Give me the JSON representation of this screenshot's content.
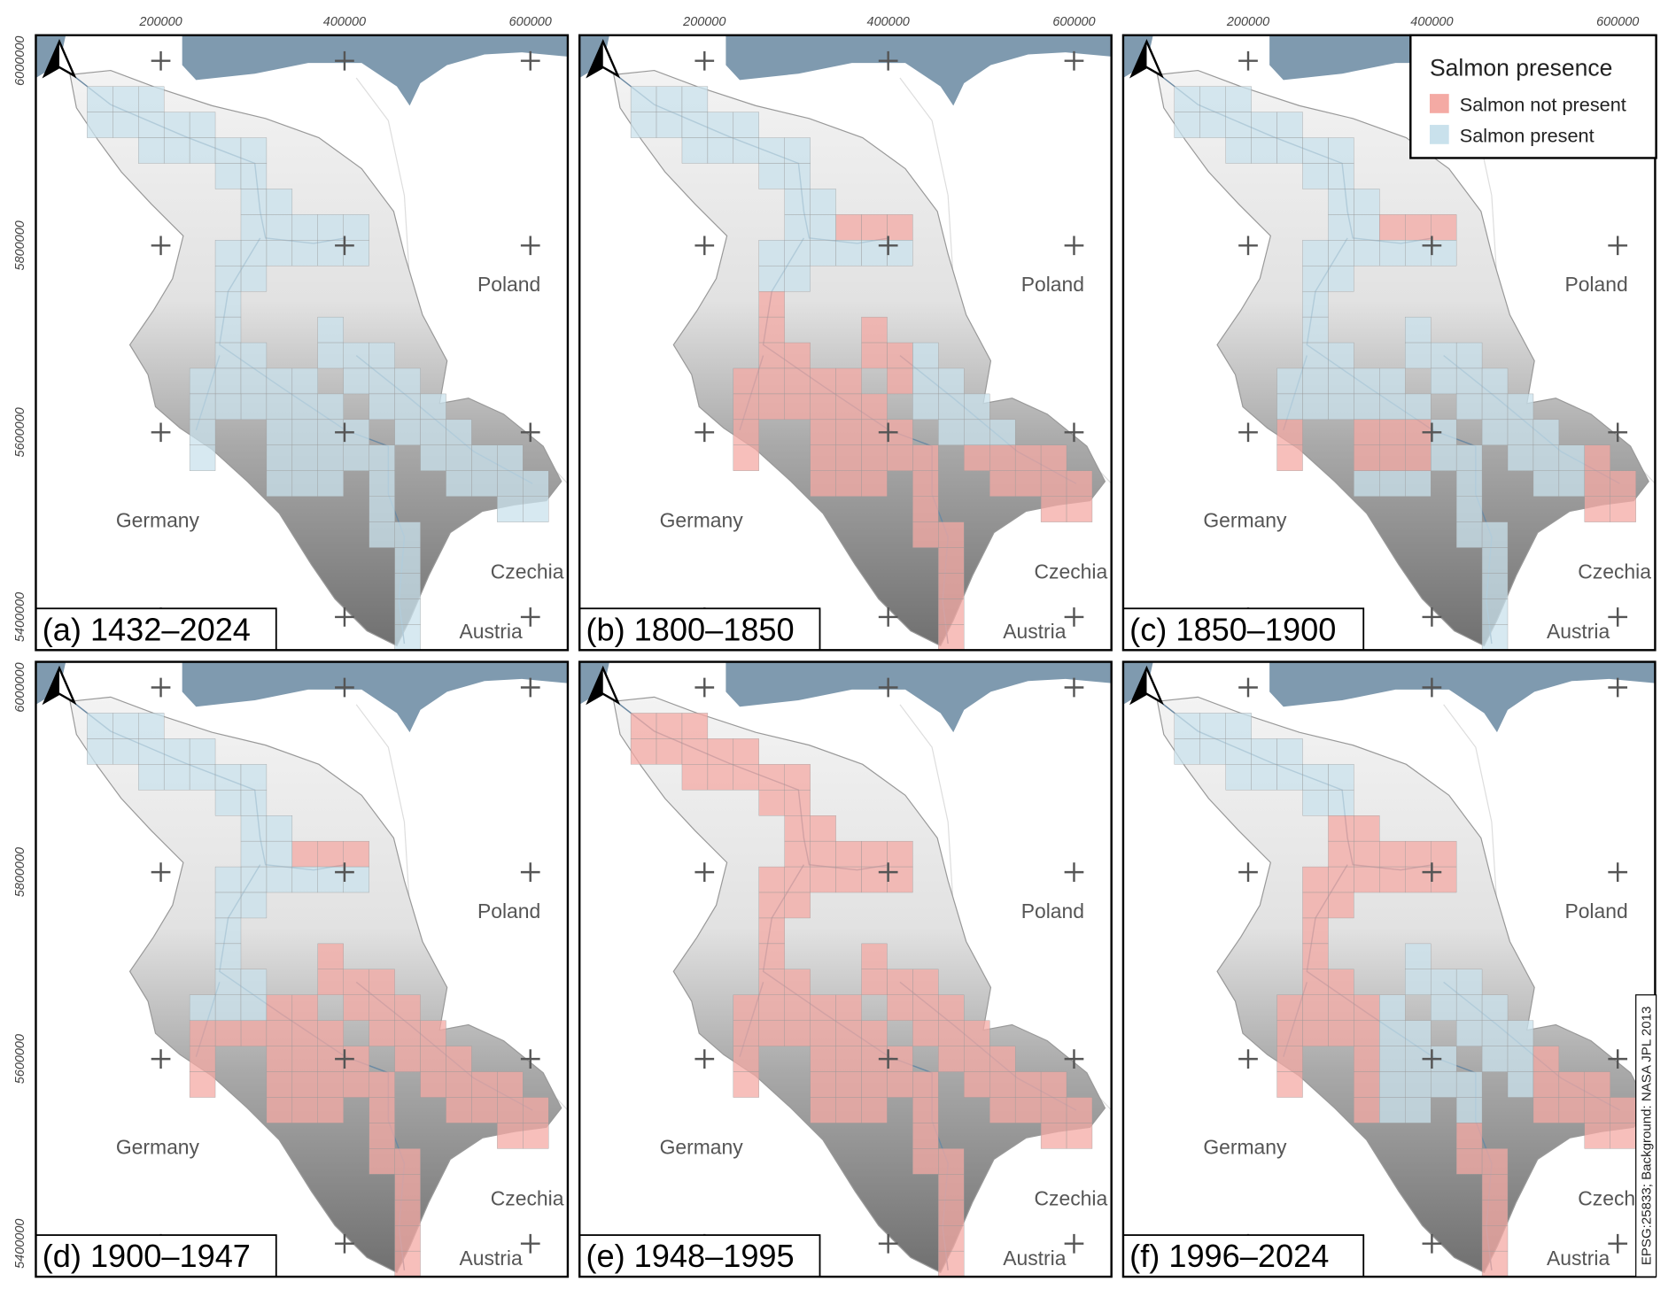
{
  "axes": {
    "x_ticks": [
      200000,
      400000,
      600000
    ],
    "y_ticks": [
      6000000,
      5800000,
      5600000,
      5400000
    ]
  },
  "panels": [
    {
      "label": "(a) 1432–2024"
    },
    {
      "label": "(b) 1800–1850"
    },
    {
      "label": "(c) 1850–1900"
    },
    {
      "label": "(d) 1900–1947"
    },
    {
      "label": "(e) 1948–1995"
    },
    {
      "label": "(f) 1996–2024"
    }
  ],
  "countries": [
    "Poland",
    "Germany",
    "Czechia",
    "Austria"
  ],
  "legend": {
    "title": "Salmon presence",
    "entries": [
      {
        "label": "Salmon not present",
        "color": "#f4aaa4"
      },
      {
        "label": "Salmon present",
        "color": "#c9e1ec"
      }
    ]
  },
  "credit": "EPSG:25833; Background: NASA JPL 2013"
}
